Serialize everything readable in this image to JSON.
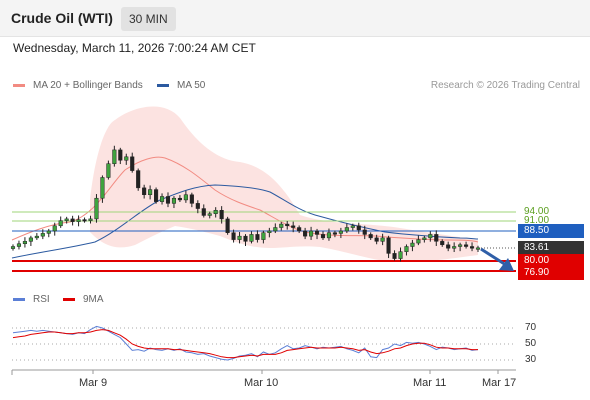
{
  "header": {
    "title": "Crude Oil (WTI)",
    "timeframe": "30 MIN"
  },
  "datetime": "Wednesday, March 11, 2026 7:00:24 AM CET",
  "legend": {
    "ma20": {
      "label": "MA 20 + Bollinger Bands",
      "color": "#f28b82"
    },
    "ma50": {
      "label": "MA 50",
      "color": "#2c5aa0"
    }
  },
  "credit": "Research © 2026 Trading Central",
  "levels": {
    "r2": {
      "label": "94.00",
      "color": "#7cba3d"
    },
    "r1": {
      "label": "91.00",
      "color": "#7cba3d"
    },
    "pivot": {
      "label": "88.50",
      "color": "#1f5fbf"
    },
    "last": {
      "label": "83.61",
      "color": "#333333"
    },
    "s1": {
      "label": "80.00",
      "color": "#e00000"
    },
    "s2": {
      "label": "76.90",
      "color": "#e00000"
    }
  },
  "rsi_legend": {
    "rsi": {
      "label": "RSI",
      "color": "#5b7fd6"
    },
    "ma": {
      "label": "9MA",
      "color": "#e00000"
    }
  },
  "rsi_levels": [
    "70",
    "50",
    "30"
  ],
  "x_labels": [
    "Mar 9",
    "Mar 10",
    "Mar 11",
    "Mar 17"
  ],
  "chart_data": {
    "type": "candlestick",
    "y_axis_marks": [
      94.0,
      91.0,
      88.5,
      83.61,
      80.0,
      76.9
    ],
    "close": [
      84.0,
      84.8,
      85.5,
      86.5,
      87.0,
      87.8,
      88.5,
      90.0,
      91.5,
      92.0,
      91.2,
      91.8,
      91.5,
      92.0,
      98.0,
      104.0,
      108.0,
      112.0,
      109.0,
      110.0,
      106.0,
      101.0,
      99.0,
      100.5,
      97.0,
      98.5,
      96.5,
      98.0,
      97.5,
      99.0,
      96.5,
      95.0,
      93.0,
      93.5,
      94.5,
      92.0,
      88.0,
      86.0,
      87.0,
      85.5,
      87.5,
      86.0,
      88.0,
      88.5,
      89.5,
      90.5,
      90.0,
      89.5,
      88.5,
      87.0,
      88.5,
      87.5,
      86.5,
      88.0,
      87.8,
      88.5,
      89.5,
      90.0,
      88.8,
      87.5,
      86.5,
      85.5,
      86.5,
      82.0,
      80.5,
      82.5,
      84.0,
      85.0,
      86.0,
      86.5,
      87.5,
      85.5,
      84.5,
      83.5,
      84.0,
      84.5,
      84.0,
      83.5,
      83.61
    ],
    "rsi": [
      64,
      65,
      66,
      67,
      66,
      67,
      66,
      65,
      64,
      63,
      62,
      64,
      63,
      68,
      72,
      70,
      66,
      62,
      58,
      50,
      42,
      43,
      41,
      45,
      43,
      42,
      44,
      42,
      44,
      40,
      39,
      37,
      38,
      35,
      33,
      31,
      30,
      32,
      35,
      36,
      38,
      34,
      40,
      37,
      39,
      44,
      48,
      44,
      45,
      48,
      46,
      44,
      46,
      45,
      46,
      47,
      44,
      42,
      39,
      45,
      34,
      33,
      43,
      45,
      50,
      48,
      52,
      51,
      52,
      50,
      47,
      43,
      46,
      45,
      43,
      44,
      45,
      42,
      43
    ],
    "rsi_ma": [
      58,
      59,
      60,
      62,
      63,
      64,
      65,
      65,
      64,
      63,
      63,
      64,
      64,
      65,
      67,
      68,
      67,
      64,
      61,
      56,
      50,
      47,
      45,
      44,
      44,
      44,
      44,
      43,
      43,
      42,
      41,
      40,
      39,
      38,
      36,
      34,
      33,
      33,
      34,
      35,
      36,
      35,
      37,
      37,
      37,
      39,
      42,
      43,
      44,
      45,
      46,
      45,
      45,
      45,
      45,
      46,
      45,
      44,
      42,
      43,
      40,
      38,
      39,
      41,
      44,
      45,
      48,
      50,
      51,
      51,
      49,
      46,
      45,
      45,
      44,
      44,
      44,
      43,
      43
    ]
  }
}
